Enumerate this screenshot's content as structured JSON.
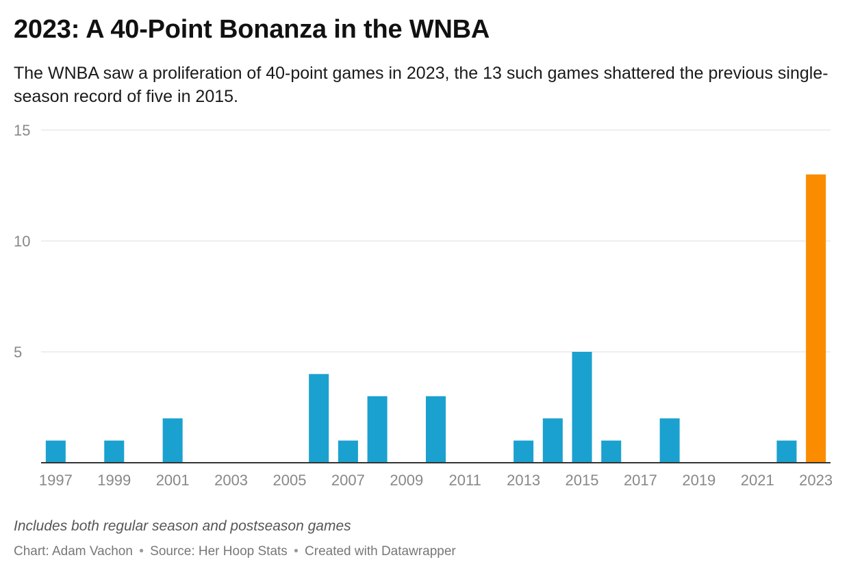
{
  "header": {
    "title": "2023: A 40-Point Bonanza in the WNBA",
    "subtitle": "The WNBA saw a proliferation of 40-point games in 2023, the 13 such games shattered the previous single-season record of five in 2015."
  },
  "footer": {
    "notes": "Includes both regular season and postseason games",
    "chart_credit": "Chart: Adam Vachon",
    "separator": "•",
    "source": "Source: Her Hoop Stats",
    "created_with": "Created with Datawrapper"
  },
  "colors": {
    "default_bar": "#1ba1cf",
    "highlight_bar": "#fb8c00",
    "grid": "#e3e3e3",
    "axis": "#333333",
    "tick_text": "#888888"
  },
  "chart_data": {
    "type": "bar",
    "title": "2023: A 40-Point Bonanza in the WNBA",
    "xlabel": "",
    "ylabel": "",
    "categories": [
      "1997",
      "1998",
      "1999",
      "2000",
      "2001",
      "2002",
      "2003",
      "2004",
      "2005",
      "2006",
      "2007",
      "2008",
      "2009",
      "2010",
      "2011",
      "2012",
      "2013",
      "2014",
      "2015",
      "2016",
      "2017",
      "2018",
      "2019",
      "2020",
      "2021",
      "2022",
      "2023"
    ],
    "values": [
      1,
      0,
      1,
      0,
      2,
      0,
      0,
      0,
      0,
      4,
      1,
      3,
      0,
      3,
      0,
      0,
      1,
      2,
      5,
      1,
      0,
      2,
      0,
      0,
      0,
      1,
      13
    ],
    "highlight": "2023",
    "ylim": [
      0,
      15
    ],
    "yticks": [
      5,
      10,
      15
    ],
    "xtick_labels": [
      "1997",
      "1999",
      "2001",
      "2003",
      "2005",
      "2007",
      "2009",
      "2011",
      "2013",
      "2015",
      "2017",
      "2019",
      "2021",
      "2023"
    ],
    "grid": true
  }
}
